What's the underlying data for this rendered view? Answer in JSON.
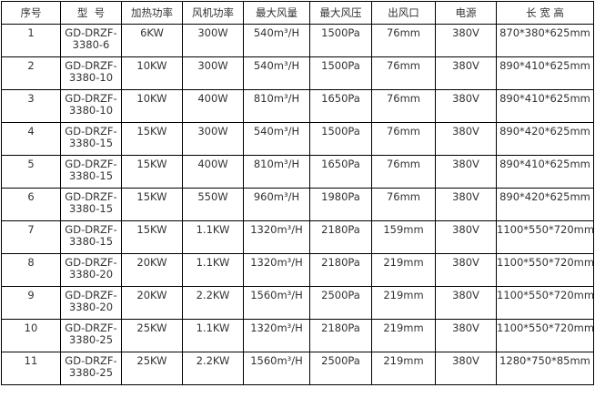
{
  "table": {
    "headers": [
      "序号",
      "型  号",
      "加热功率",
      "风机功率",
      "最大风量",
      "最大风压",
      "出风口",
      "电源",
      "长 宽 高"
    ],
    "rows": [
      [
        "1",
        "GD-DRZF-3380-6",
        "6KW",
        "300W",
        "540m³/H",
        "1500Pa",
        "76mm",
        "380V",
        "870*380*625mm"
      ],
      [
        "2",
        "GD-DRZF-3380-10",
        "10KW",
        "300W",
        "540m³/H",
        "1500Pa",
        "76mm",
        "380V",
        "890*410*625mm"
      ],
      [
        "3",
        "GD-DRZF-3380-10",
        "10KW",
        "400W",
        "810m³/H",
        "1650Pa",
        "76mm",
        "380V",
        "890*410*625mm"
      ],
      [
        "4",
        "GD-DRZF-3380-15",
        "15KW",
        "300W",
        "540m³/H",
        "1500Pa",
        "76mm",
        "380V",
        "890*420*625mm"
      ],
      [
        "5",
        "GD-DRZF-3380-15",
        "15KW",
        "400W",
        "810m³/H",
        "1650Pa",
        "76mm",
        "380V",
        "890*410*625mm"
      ],
      [
        "6",
        "GD-DRZF-3380-15",
        "15KW",
        "550W",
        "960m³/H",
        "1980Pa",
        "76mm",
        "380V",
        "890*420*625mm"
      ],
      [
        "7",
        "GD-DRZF-3380-15",
        "15KW",
        "1.1KW",
        "1320m³/H",
        "2180Pa",
        "159mm",
        "380V",
        "1100*550*720mm"
      ],
      [
        "8",
        "GD-DRZF-3380-20",
        "20KW",
        "1.1KW",
        "1320m³/H",
        "2180Pa",
        "219mm",
        "380V",
        "1100*550*720mm"
      ],
      [
        "9",
        "GD-DRZF-3380-20",
        "20KW",
        "2.2KW",
        "1560m³/H",
        "2500Pa",
        "219mm",
        "380V",
        "1100*550*720mm"
      ],
      [
        "10",
        "GD-DRZF-3380-25",
        "25KW",
        "1.1KW",
        "1320m³/H",
        "2180Pa",
        "219mm",
        "380V",
        "1100*550*720mm"
      ],
      [
        "11",
        "GD-DRZF-3380-25",
        "25KW",
        "2.2KW",
        "1560m³/H",
        "2500Pa",
        "219mm",
        "380V",
        "1280*750*85mm"
      ]
    ]
  }
}
